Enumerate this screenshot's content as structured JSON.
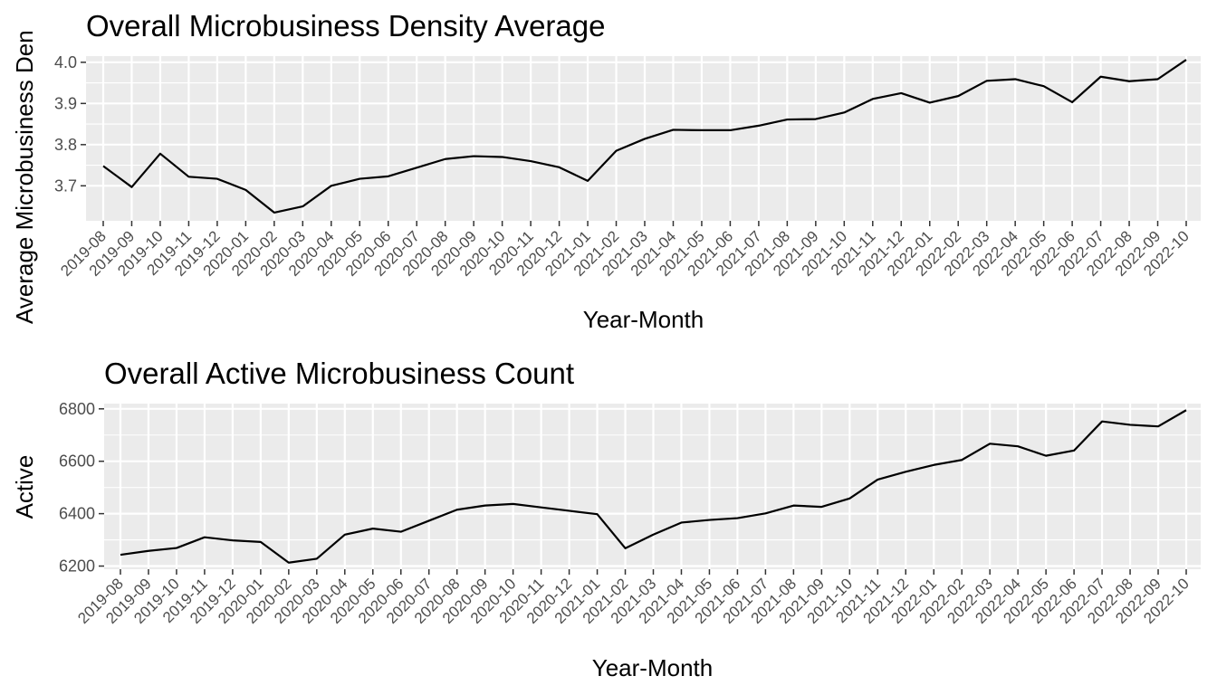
{
  "chart_data": [
    {
      "type": "line",
      "title": "Overall Microbusiness Density Average",
      "xlabel": "Year-Month",
      "ylabel": "Average Microbusiness Den",
      "x": [
        "2019-08",
        "2019-09",
        "2019-10",
        "2019-11",
        "2019-12",
        "2020-01",
        "2020-02",
        "2020-03",
        "2020-04",
        "2020-05",
        "2020-06",
        "2020-07",
        "2020-08",
        "2020-09",
        "2020-10",
        "2020-11",
        "2020-12",
        "2021-01",
        "2021-02",
        "2021-03",
        "2021-04",
        "2021-05",
        "2021-06",
        "2021-07",
        "2021-08",
        "2021-09",
        "2021-10",
        "2021-11",
        "2021-12",
        "2022-01",
        "2022-02",
        "2022-03",
        "2022-04",
        "2022-05",
        "2022-06",
        "2022-07",
        "2022-08",
        "2022-09",
        "2022-10"
      ],
      "values": [
        3.748,
        3.697,
        3.778,
        3.722,
        3.717,
        3.69,
        3.635,
        3.65,
        3.7,
        3.717,
        3.723,
        3.744,
        3.765,
        3.772,
        3.77,
        3.76,
        3.745,
        3.712,
        3.785,
        3.814,
        3.836,
        3.835,
        3.835,
        3.846,
        3.861,
        3.862,
        3.878,
        3.911,
        3.925,
        3.902,
        3.918,
        3.955,
        3.959,
        3.942,
        3.903,
        3.965,
        3.954,
        3.959,
        4.006
      ],
      "yticks": [
        "3.7",
        "3.8",
        "3.9",
        "4.0"
      ],
      "ylim": [
        3.615,
        4.015
      ],
      "grid": true,
      "legend": "none"
    },
    {
      "type": "line",
      "title": "Overall Active Microbusiness Count",
      "xlabel": "Year-Month",
      "ylabel": "Active",
      "x": [
        "2019-08",
        "2019-09",
        "2019-10",
        "2019-11",
        "2019-12",
        "2020-01",
        "2020-02",
        "2020-03",
        "2020-04",
        "2020-05",
        "2020-06",
        "2020-07",
        "2020-08",
        "2020-09",
        "2020-10",
        "2020-11",
        "2020-12",
        "2021-01",
        "2021-02",
        "2021-03",
        "2021-04",
        "2021-05",
        "2021-06",
        "2021-07",
        "2021-08",
        "2021-09",
        "2021-10",
        "2021-11",
        "2021-12",
        "2022-01",
        "2022-02",
        "2022-03",
        "2022-04",
        "2022-05",
        "2022-06",
        "2022-07",
        "2022-08",
        "2022-09",
        "2022-10"
      ],
      "values": [
        6243,
        6258,
        6269,
        6310,
        6298,
        6292,
        6213,
        6228,
        6320,
        6343,
        6331,
        6373,
        6415,
        6431,
        6437,
        6424,
        6411,
        6398,
        6268,
        6320,
        6366,
        6376,
        6383,
        6401,
        6431,
        6426,
        6458,
        6530,
        6560,
        6586,
        6605,
        6667,
        6657,
        6621,
        6641,
        6752,
        6739,
        6733,
        6795
      ],
      "yticks": [
        "6200",
        "6400",
        "6600",
        "6800"
      ],
      "ylim": [
        6188,
        6820
      ],
      "grid": true,
      "legend": "none"
    }
  ]
}
